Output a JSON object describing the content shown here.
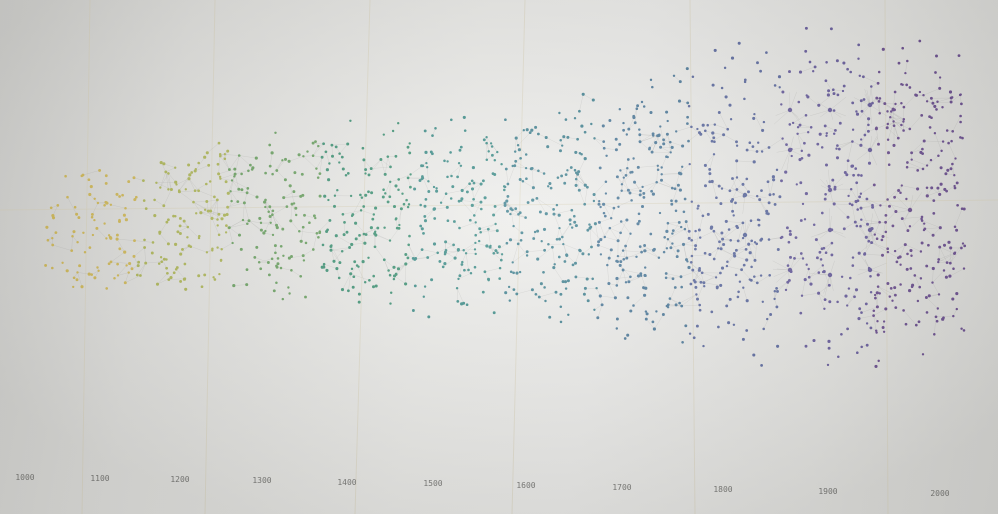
{
  "timeline": {
    "ticks": [
      "1000",
      "1100",
      "1200",
      "1300",
      "1400",
      "1500",
      "1600",
      "1700",
      "1800",
      "1900",
      "2000"
    ]
  },
  "palette": {
    "era_colors": [
      "#cfb54a",
      "#a9b24a",
      "#5f9a55",
      "#2f8a6a",
      "#2f8580",
      "#357a8a",
      "#3f6f92",
      "#4f5e98",
      "#5b4f95",
      "#5e3f86"
    ],
    "background": "#e6e6e3"
  }
}
